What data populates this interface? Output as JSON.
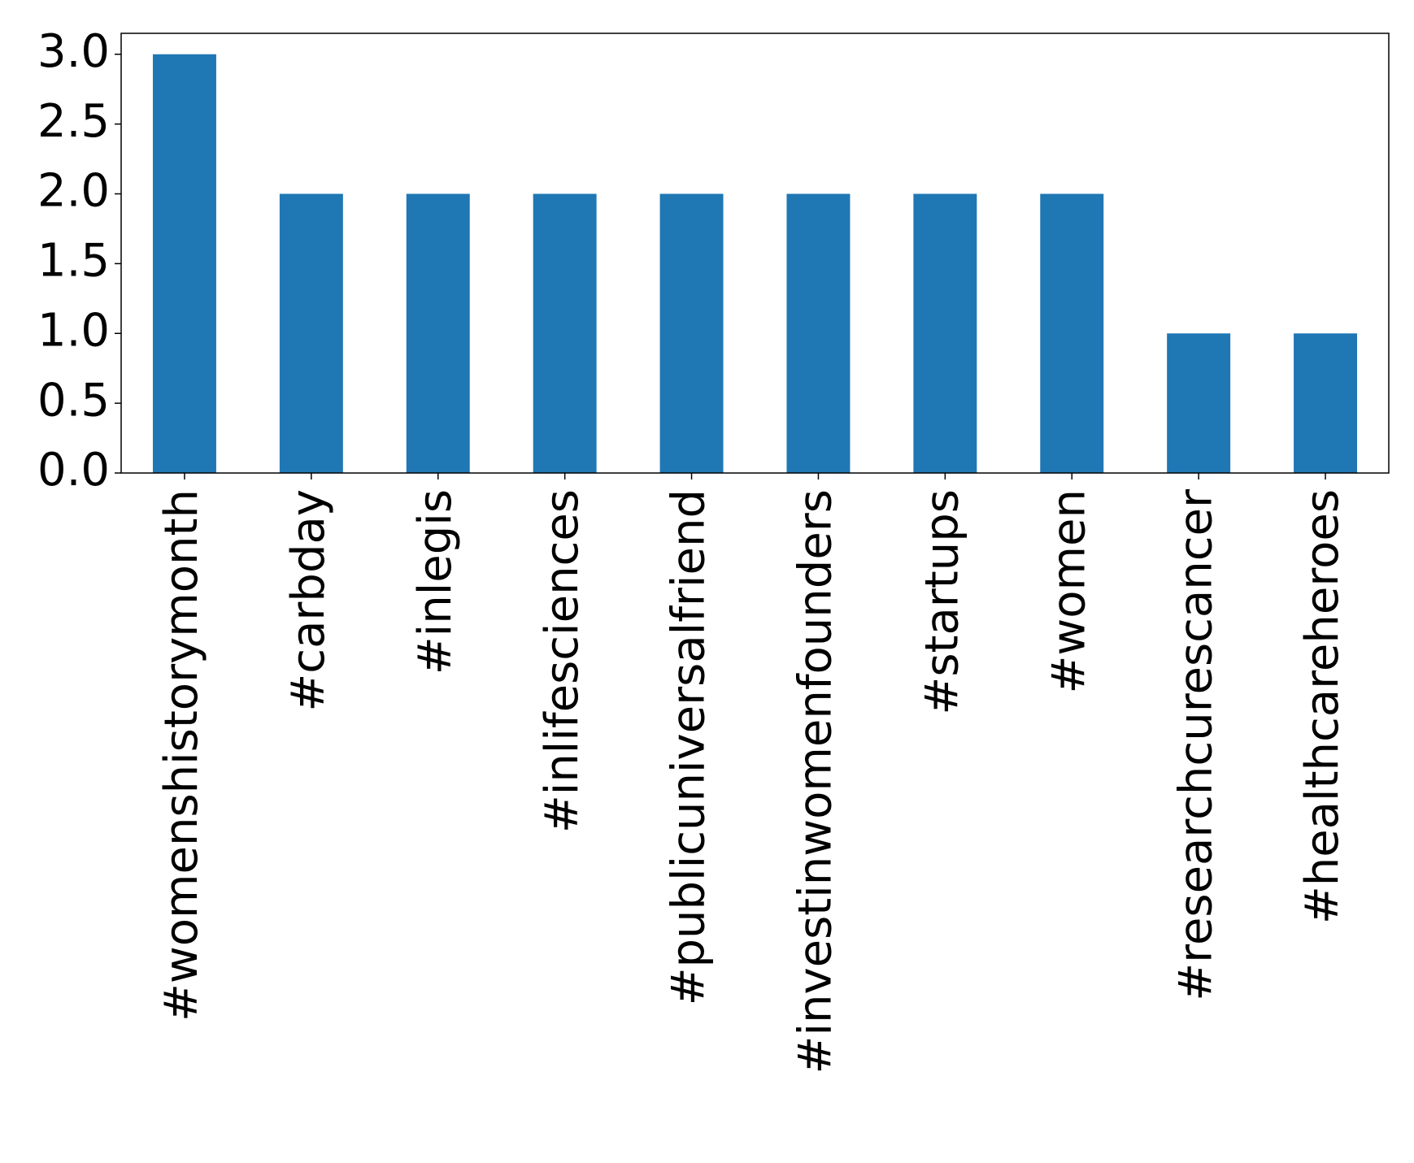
{
  "chart_data": {
    "type": "bar",
    "categories": [
      "#womenshistorymonth",
      "#carbday",
      "#inlegis",
      "#inlifesciences",
      "#publicuniversalfriend",
      "#investinwomenfounders",
      "#startups",
      "#women",
      "#researchcurescancer",
      "#healthcareheroes"
    ],
    "values": [
      3,
      2,
      2,
      2,
      2,
      2,
      2,
      2,
      1,
      1
    ],
    "color": "#1f77b4",
    "ylim": [
      0,
      3.15
    ],
    "yticks": [
      {
        "value": 0,
        "label": "0.0"
      },
      {
        "value": 0.5,
        "label": "0.5"
      },
      {
        "value": 1,
        "label": "1.0"
      },
      {
        "value": 1.5,
        "label": "1.5"
      },
      {
        "value": 2,
        "label": "2.0"
      },
      {
        "value": 2.5,
        "label": "2.5"
      },
      {
        "value": 3,
        "label": "3.0"
      }
    ],
    "grid": false
  }
}
